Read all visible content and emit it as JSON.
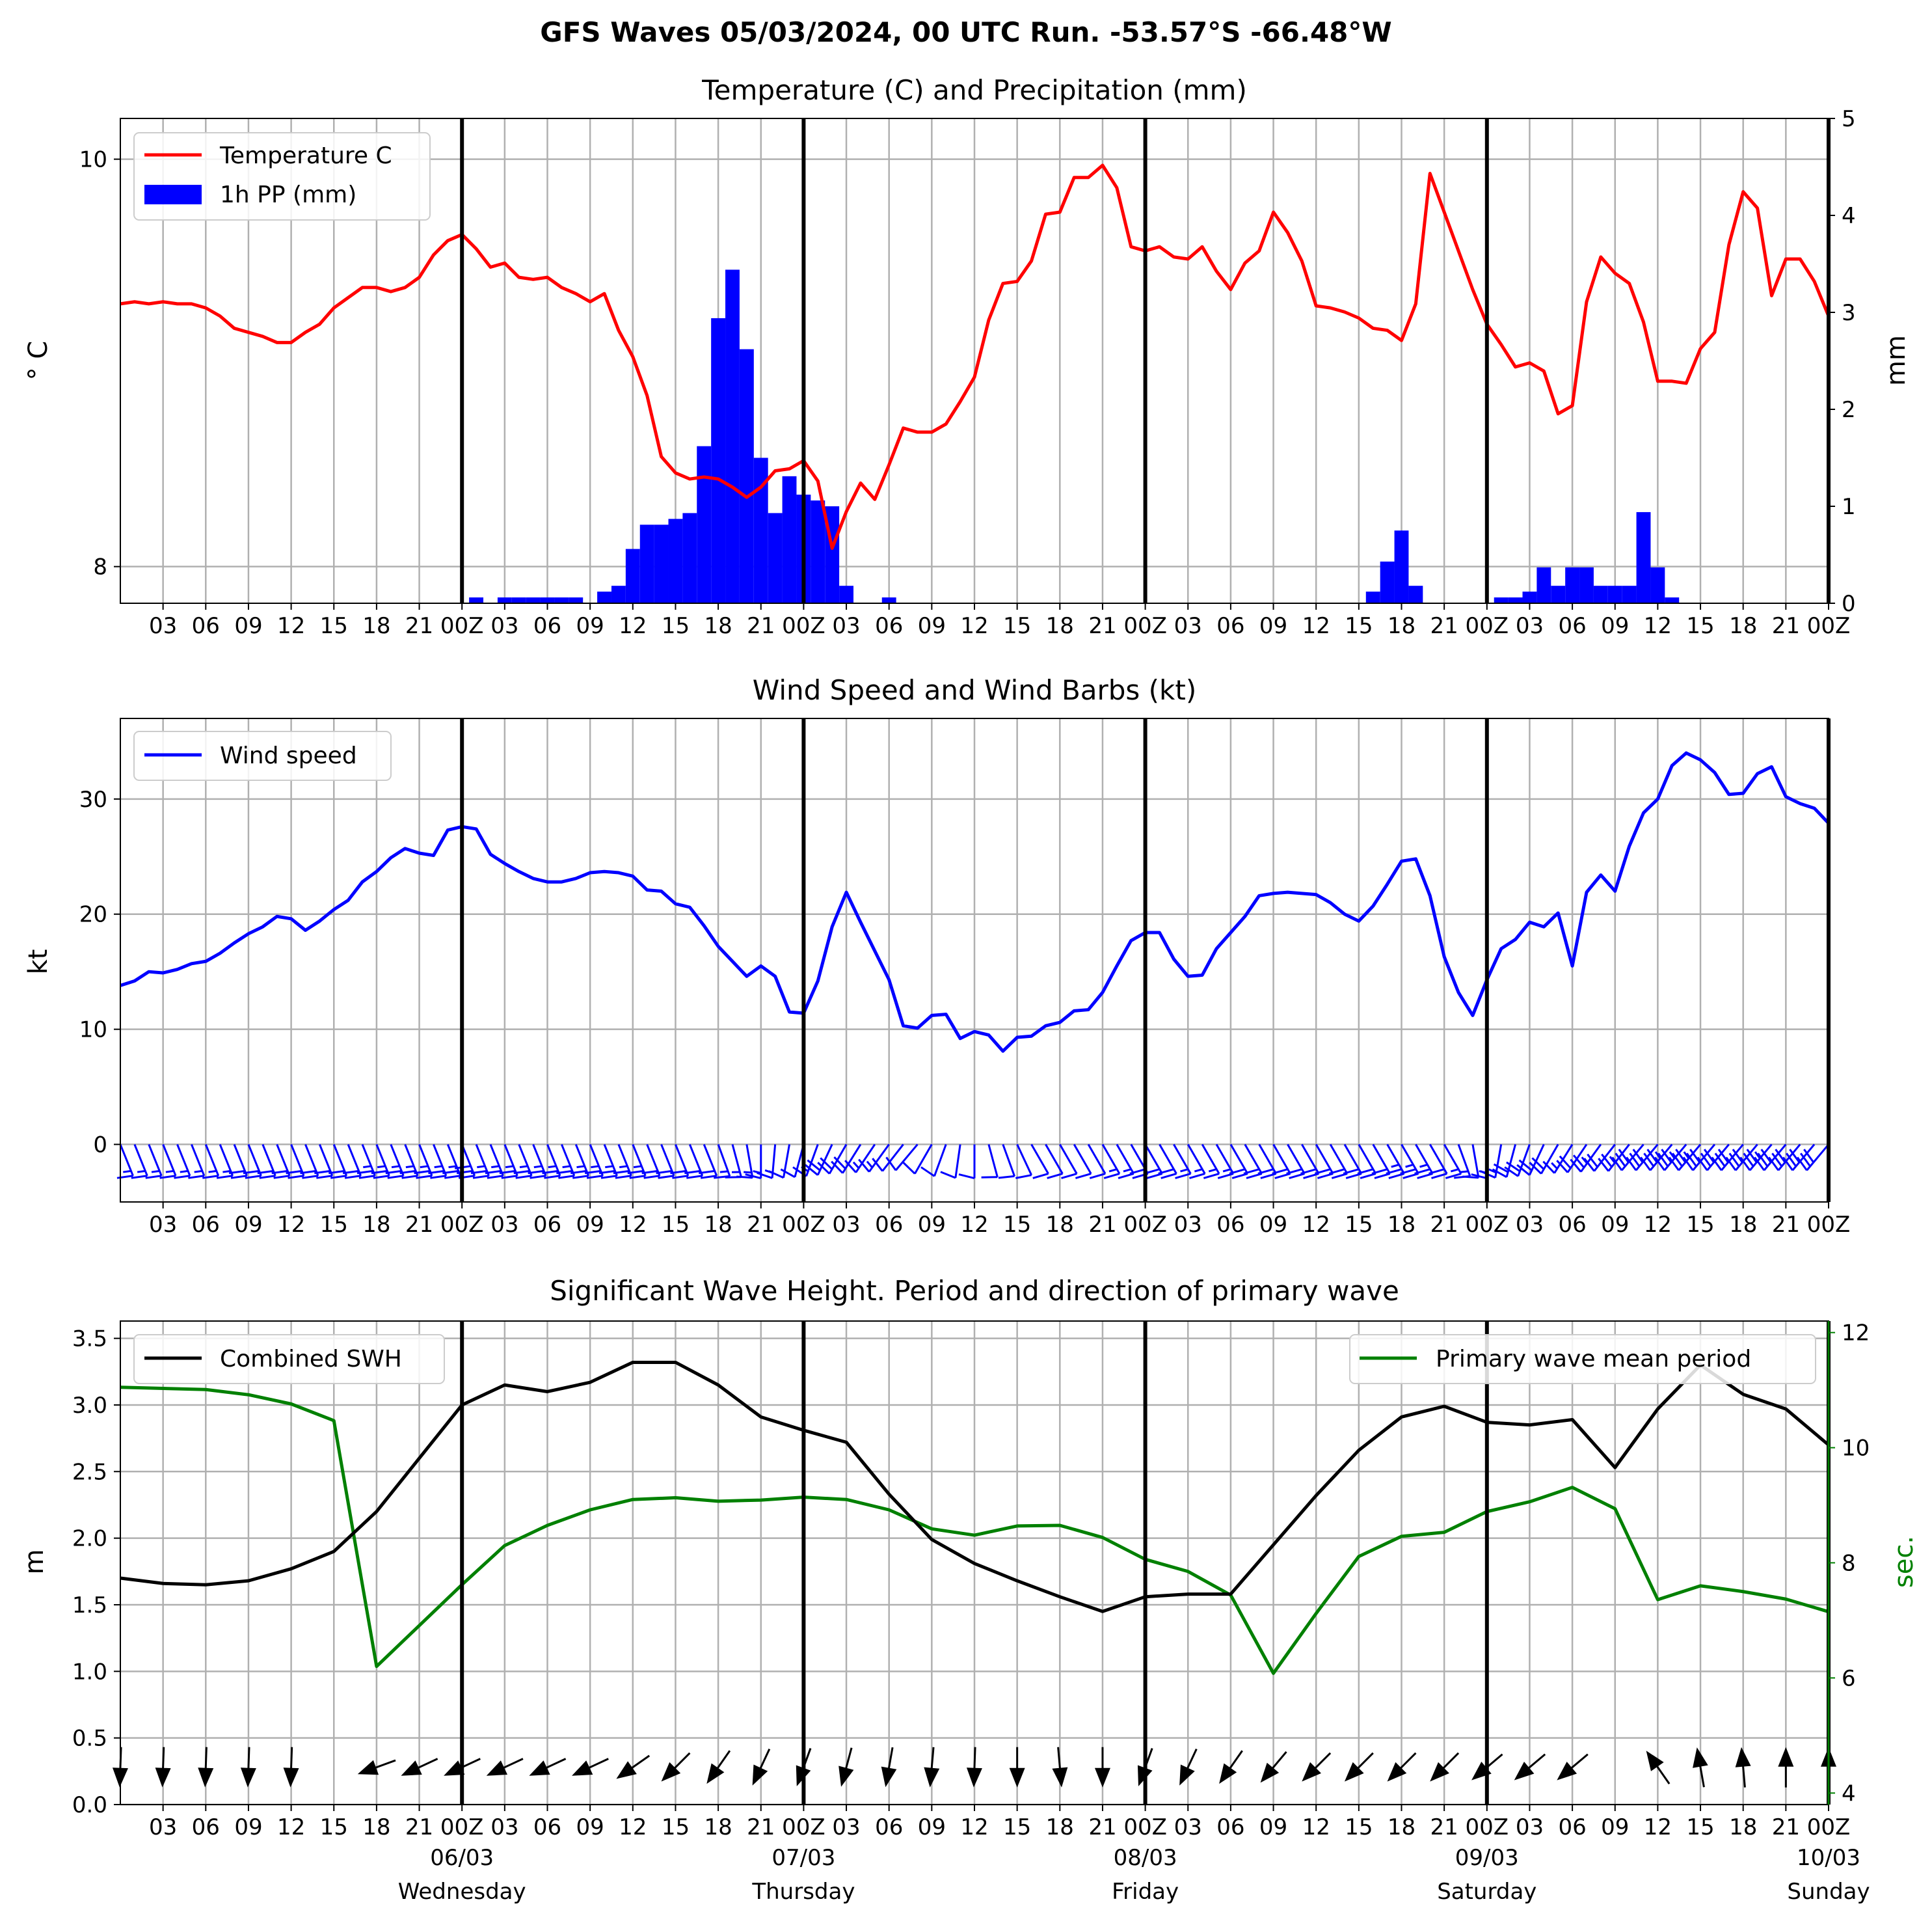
{
  "suptitle": "GFS Waves 05/03/2024, 00 UTC Run. -53.57°S -66.48°W",
  "x_tick_labels": [
    "03",
    "06",
    "09",
    "12",
    "15",
    "18",
    "21",
    "00Z",
    "03",
    "06",
    "09",
    "12",
    "15",
    "18",
    "21",
    "00Z",
    "03",
    "06",
    "09",
    "12",
    "15",
    "18",
    "21",
    "00Z",
    "03",
    "06",
    "09",
    "12",
    "15",
    "18",
    "21",
    "00Z",
    "03",
    "06",
    "09",
    "12",
    "15",
    "18",
    "21",
    "00Z"
  ],
  "day_labels": [
    {
      "date": "06/03",
      "weekday": "Wednesday"
    },
    {
      "date": "07/03",
      "weekday": "Thursday"
    },
    {
      "date": "08/03",
      "weekday": "Friday"
    },
    {
      "date": "09/03",
      "weekday": "Saturday"
    },
    {
      "date": "10/03",
      "weekday": "Sunday"
    }
  ],
  "chart_data": [
    {
      "type": "line",
      "title": "Temperature (C) and Precipitation (mm)",
      "ylabel": "° C",
      "ylabel_right": "mm",
      "x_start": "05/03 00Z",
      "x_end": "10/03 00Z",
      "x_step_hours": 1,
      "ylim": [
        7.82,
        10.2
      ],
      "yticks": [
        8,
        10
      ],
      "ylim_right": [
        0,
        5
      ],
      "yticks_right": [
        0,
        1,
        2,
        3,
        4,
        5
      ],
      "legend": "top-left",
      "grid": true,
      "colors": {
        "temperature": "#ff0000",
        "precip": "#0000ff"
      },
      "series": [
        {
          "name": "Temperature C",
          "kind": "line",
          "x_hours": [
            0,
            1,
            2,
            3,
            4,
            5,
            6,
            7,
            8,
            9,
            10,
            11,
            12,
            13,
            14,
            15,
            16,
            17,
            18,
            19,
            20,
            21,
            22,
            23,
            24,
            25,
            26,
            27,
            28,
            29,
            30,
            31,
            32,
            33,
            34,
            35,
            36,
            37,
            38,
            39,
            40,
            41,
            42,
            43,
            44,
            45,
            46,
            47,
            48,
            49,
            50,
            51,
            52,
            53,
            54,
            55,
            56,
            57,
            58,
            59,
            60,
            61,
            62,
            63,
            64,
            65,
            66,
            67,
            68,
            69,
            70,
            71,
            72,
            73,
            74,
            75,
            76,
            77,
            78,
            79,
            80,
            81,
            82,
            83,
            84,
            85,
            86,
            87,
            88,
            89,
            90,
            91,
            92,
            93,
            94,
            95,
            96,
            97,
            98,
            99,
            100,
            101,
            102,
            103,
            104,
            105,
            106,
            107,
            108,
            109,
            110,
            111,
            112,
            113,
            114,
            115,
            116,
            117,
            118,
            119,
            120
          ],
          "values": [
            9.29,
            9.3,
            9.29,
            9.3,
            9.29,
            9.29,
            9.27,
            9.23,
            9.17,
            9.15,
            9.13,
            9.1,
            9.1,
            9.15,
            9.19,
            9.27,
            9.32,
            9.37,
            9.37,
            9.35,
            9.37,
            9.42,
            9.53,
            9.6,
            9.63,
            9.56,
            9.47,
            9.49,
            9.42,
            9.41,
            9.42,
            9.37,
            9.34,
            9.3,
            9.34,
            9.16,
            9.03,
            8.84,
            8.54,
            8.46,
            8.43,
            8.44,
            8.43,
            8.39,
            8.34,
            8.39,
            8.47,
            8.48,
            8.52,
            8.42,
            8.09,
            8.27,
            8.41,
            8.33,
            8.5,
            8.68,
            8.66,
            8.66,
            8.7,
            8.81,
            8.93,
            9.21,
            9.39,
            9.4,
            9.5,
            9.73,
            9.74,
            9.91,
            9.91,
            9.97,
            9.86,
            9.57,
            9.55,
            9.57,
            9.52,
            9.51,
            9.57,
            9.45,
            9.36,
            9.49,
            9.55,
            9.74,
            9.64,
            9.5,
            9.28,
            9.27,
            9.25,
            9.22,
            9.17,
            9.16,
            9.11,
            9.29,
            9.93,
            9.74,
            9.55,
            9.36,
            9.19,
            9.09,
            8.98,
            9.0,
            8.96,
            8.75,
            8.79,
            9.3,
            9.52,
            9.44,
            9.39,
            9.2,
            8.91,
            8.91,
            8.9,
            9.07,
            9.15,
            9.58,
            9.84,
            9.76,
            9.33,
            9.51,
            9.51,
            9.4,
            9.23
          ]
        },
        {
          "name": "1h PP (mm)",
          "kind": "bar",
          "bars": [
            {
              "x": 25,
              "v": 0.06
            },
            {
              "x": 27,
              "v": 0.06
            },
            {
              "x": 28,
              "v": 0.06
            },
            {
              "x": 29,
              "v": 0.06
            },
            {
              "x": 30,
              "v": 0.06
            },
            {
              "x": 31,
              "v": 0.06
            },
            {
              "x": 32,
              "v": 0.06
            },
            {
              "x": 34,
              "v": 0.12
            },
            {
              "x": 35,
              "v": 0.18
            },
            {
              "x": 36,
              "v": 0.56
            },
            {
              "x": 37,
              "v": 0.81
            },
            {
              "x": 38,
              "v": 0.81
            },
            {
              "x": 39,
              "v": 0.87
            },
            {
              "x": 40,
              "v": 0.93
            },
            {
              "x": 41,
              "v": 1.62
            },
            {
              "x": 42,
              "v": 2.94
            },
            {
              "x": 43,
              "v": 3.44
            },
            {
              "x": 44,
              "v": 2.62
            },
            {
              "x": 45,
              "v": 1.5
            },
            {
              "x": 46,
              "v": 0.93
            },
            {
              "x": 47,
              "v": 1.31
            },
            {
              "x": 48,
              "v": 1.12
            },
            {
              "x": 49,
              "v": 1.06
            },
            {
              "x": 50,
              "v": 1.0
            },
            {
              "x": 51,
              "v": 0.18
            },
            {
              "x": 54,
              "v": 0.06
            },
            {
              "x": 88,
              "v": 0.12
            },
            {
              "x": 89,
              "v": 0.43
            },
            {
              "x": 90,
              "v": 0.75
            },
            {
              "x": 91,
              "v": 0.18
            },
            {
              "x": 97,
              "v": 0.06
            },
            {
              "x": 98,
              "v": 0.06
            },
            {
              "x": 99,
              "v": 0.12
            },
            {
              "x": 100,
              "v": 0.37
            },
            {
              "x": 101,
              "v": 0.18
            },
            {
              "x": 102,
              "v": 0.37
            },
            {
              "x": 103,
              "v": 0.37
            },
            {
              "x": 104,
              "v": 0.18
            },
            {
              "x": 105,
              "v": 0.18
            },
            {
              "x": 106,
              "v": 0.18
            },
            {
              "x": 107,
              "v": 0.94
            },
            {
              "x": 108,
              "v": 0.37
            },
            {
              "x": 109,
              "v": 0.06
            }
          ]
        }
      ]
    },
    {
      "type": "line",
      "title": "Wind Speed and Wind Barbs (kt)",
      "ylabel": "kt",
      "ylim": [
        -5,
        37
      ],
      "yticks": [
        0,
        10,
        20,
        30
      ],
      "legend": "top-left",
      "grid": true,
      "colors": {
        "wind": "#0000ff"
      },
      "series": [
        {
          "name": "Wind speed",
          "x_step_hours": 1,
          "values": [
            13.8,
            14.2,
            15.0,
            14.9,
            15.2,
            15.7,
            15.9,
            16.6,
            17.5,
            18.3,
            18.9,
            19.8,
            19.6,
            18.6,
            19.4,
            20.4,
            21.2,
            22.8,
            23.7,
            24.9,
            25.7,
            25.3,
            25.1,
            27.3,
            27.6,
            27.4,
            25.2,
            24.4,
            23.7,
            23.1,
            22.8,
            22.8,
            23.1,
            23.6,
            23.7,
            23.6,
            23.3,
            22.1,
            22.0,
            20.9,
            20.6,
            19.0,
            17.2,
            15.9,
            14.6,
            15.5,
            14.6,
            11.5,
            11.4,
            14.2,
            18.9,
            21.9,
            19.3,
            16.8,
            14.3,
            10.3,
            10.1,
            11.2,
            11.3,
            9.2,
            9.8,
            9.5,
            8.1,
            9.3,
            9.4,
            10.3,
            10.6,
            11.6,
            11.7,
            13.2,
            15.5,
            17.7,
            18.4,
            18.4,
            16.1,
            14.6,
            14.7,
            17.0,
            18.4,
            19.8,
            21.6,
            21.8,
            21.9,
            21.8,
            21.7,
            21.0,
            20.0,
            19.4,
            20.7,
            22.6,
            24.6,
            24.8,
            21.6,
            16.3,
            13.2,
            11.2,
            14.3,
            17.0,
            17.8,
            19.3,
            18.9,
            20.1,
            15.5,
            21.9,
            23.4,
            22.0,
            25.9,
            28.8,
            30.0,
            32.9,
            34.0,
            33.4,
            32.3,
            30.4,
            30.5,
            32.2,
            32.8,
            30.2,
            29.6,
            29.2,
            27.9
          ]
        },
        {
          "name": "wind barbs",
          "kind": "barbs",
          "x_step_hours": 1,
          "barb_direction_deg": [
            292,
            292,
            292,
            292,
            292,
            292,
            292,
            292,
            292,
            292,
            292,
            292,
            292,
            292,
            292,
            292,
            292,
            292,
            292,
            292,
            292,
            292,
            292,
            292,
            292,
            292,
            292,
            292,
            292,
            292,
            292,
            292,
            292,
            292,
            292,
            292,
            292,
            292,
            292,
            292,
            292,
            292,
            290,
            285,
            280,
            270,
            265,
            260,
            255,
            250,
            245,
            240,
            238,
            236,
            234,
            232,
            230,
            240,
            250,
            262,
            270,
            285,
            290,
            295,
            300,
            300,
            300,
            300,
            300,
            300,
            300,
            300,
            300,
            300,
            300,
            300,
            300,
            300,
            300,
            300,
            300,
            300,
            300,
            300,
            300,
            300,
            300,
            300,
            300,
            300,
            300,
            300,
            300,
            300,
            290,
            280,
            270,
            260,
            255,
            250,
            245,
            240,
            238,
            236,
            234,
            232,
            232,
            230,
            230,
            230,
            230,
            230,
            230,
            230,
            230,
            230,
            230,
            230,
            230,
            230,
            230
          ]
        }
      ]
    },
    {
      "type": "line",
      "title": "Significant Wave Height. Period and direction of primary wave",
      "ylabel": "m",
      "ylabel_right": "sec.",
      "ylim": [
        0,
        3.63
      ],
      "yticks": [
        0.0,
        0.5,
        1.0,
        1.5,
        2.0,
        2.5,
        3.0,
        3.5
      ],
      "ylim_right": [
        3.8,
        12.2
      ],
      "yticks_right": [
        4,
        6,
        8,
        10,
        12
      ],
      "legend": [
        "top-left",
        "top-right"
      ],
      "grid": true,
      "colors": {
        "swh": "#000000",
        "period": "#008000",
        "arrows": "#000000"
      },
      "series": [
        {
          "name": "Combined SWH",
          "x_step_hours": 3,
          "values": [
            1.7,
            1.66,
            1.65,
            1.68,
            1.77,
            1.9,
            2.2,
            2.6,
            3.0,
            3.15,
            3.1,
            3.17,
            3.32,
            3.32,
            3.15,
            2.91,
            2.81,
            2.72,
            2.33,
            1.99,
            1.81,
            1.68,
            1.56,
            1.45,
            1.56,
            1.58,
            1.58,
            1.95,
            2.32,
            2.66,
            2.91,
            2.99,
            2.87,
            2.85,
            2.89,
            2.53,
            2.97,
            3.3,
            3.08,
            2.97,
            2.7
          ]
        },
        {
          "name": "Primary wave mean period",
          "axis": "right",
          "x_step_hours": 3,
          "values": [
            11.05,
            11.03,
            11.01,
            10.92,
            10.76,
            10.47,
            6.2,
            6.91,
            7.62,
            8.3,
            8.65,
            8.92,
            9.1,
            9.13,
            9.07,
            9.09,
            9.14,
            9.1,
            8.92,
            8.59,
            8.48,
            8.64,
            8.65,
            8.44,
            8.06,
            7.85,
            7.44,
            6.08,
            7.12,
            8.11,
            8.46,
            8.53,
            8.89,
            9.06,
            9.31,
            8.94,
            7.36,
            7.6,
            7.5,
            7.37,
            7.15
          ]
        },
        {
          "name": "primary wave direction",
          "kind": "arrows",
          "x_step_hours": 3,
          "direction_deg": [
            268,
            268,
            268,
            268,
            268,
            null,
            200,
            205,
            205,
            205,
            205,
            205,
            215,
            225,
            235,
            245,
            250,
            255,
            260,
            265,
            268,
            270,
            275,
            270,
            250,
            245,
            235,
            230,
            225,
            225,
            225,
            225,
            220,
            220,
            220,
            null,
            125,
            100,
            95,
            90,
            90
          ]
        }
      ]
    }
  ]
}
